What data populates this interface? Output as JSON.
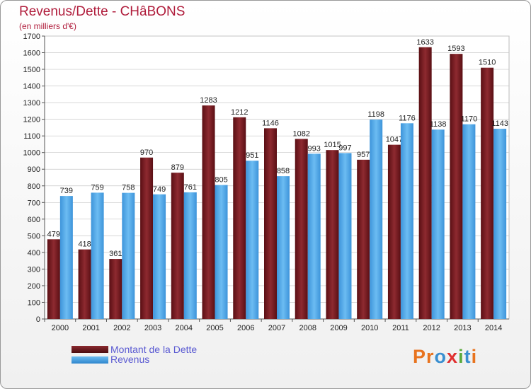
{
  "header": {
    "title": "Revenus/Dette - CHâBONS",
    "subtitle": "(en milliers d'€)"
  },
  "chart_data": {
    "type": "bar",
    "categories": [
      "2000",
      "2001",
      "2002",
      "2003",
      "2004",
      "2005",
      "2006",
      "2007",
      "2008",
      "2009",
      "2010",
      "2011",
      "2012",
      "2013",
      "2014"
    ],
    "series": [
      {
        "name": "Montant de la Dette",
        "color": "#7a1f25",
        "values": [
          479,
          418,
          361,
          970,
          879,
          1283,
          1212,
          1146,
          1082,
          1015,
          957,
          1047,
          1633,
          1593,
          1510
        ]
      },
      {
        "name": "Revenus",
        "color": "#4ea6e6",
        "values": [
          739,
          759,
          758,
          749,
          761,
          805,
          951,
          858,
          993,
          997,
          1198,
          1176,
          1138,
          1170,
          1143
        ]
      }
    ],
    "ylim": [
      0,
      1700
    ],
    "yticks": [
      0,
      100,
      200,
      300,
      400,
      500,
      600,
      700,
      800,
      900,
      1000,
      1100,
      1200,
      1300,
      1400,
      1500,
      1600,
      1700
    ],
    "grid": true,
    "legend": "bottom-left"
  },
  "legend": {
    "items": [
      {
        "label": "Montant de la Dette",
        "color": "#7a1f25"
      },
      {
        "label": "Revenus",
        "color": "#4ea6e6"
      }
    ]
  },
  "logo": {
    "text": "Proxiti",
    "colors": [
      "#e8731e",
      "#e8731e",
      "#3a8fd0",
      "#e03030",
      "#5aaa3c",
      "#3a8fd0",
      "#e8731e"
    ]
  }
}
